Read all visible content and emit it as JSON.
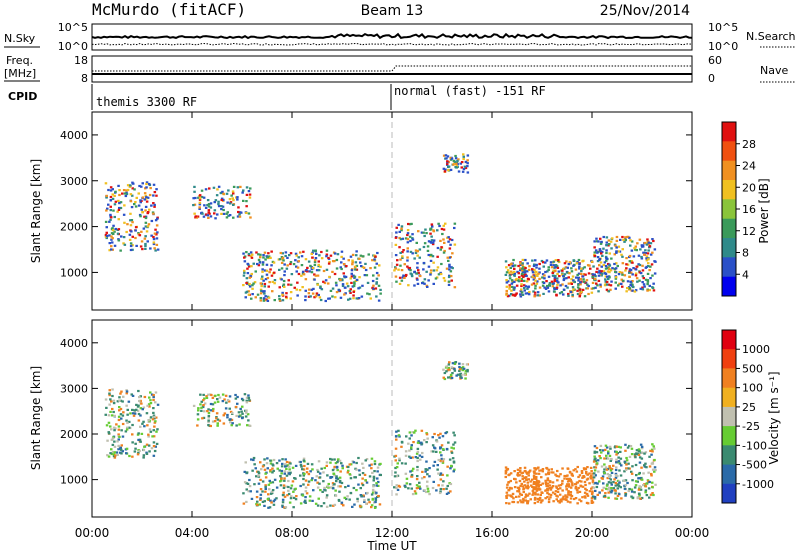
{
  "header": {
    "station": "McMurdo (fitACF)",
    "beam": "Beam 13",
    "date": "25/Nov/2014"
  },
  "top_panels": {
    "nsky_label": "N.Sky",
    "nsky_ticks": [
      "10^5",
      "10^0"
    ],
    "nsearch_ticks": [
      "10^5",
      "10^0"
    ],
    "nsearch_label": "N.Search",
    "freq_label_1": "Freq.",
    "freq_label_2": "[MHz]",
    "freq_ticks": [
      "18",
      "8"
    ],
    "nave_ticks": [
      "60",
      "0"
    ],
    "nave_label": "Nave",
    "cpid_label": "CPID",
    "cpid_1": "themis 3300 RF",
    "cpid_2": "normal (fast) -151 RF"
  },
  "chart_data": [
    {
      "type": "heatmap",
      "ylabel": "Slant Range [km]",
      "yticks": [
        "4000",
        "3000",
        "2000",
        "1000"
      ],
      "ylim": [
        180,
        4500
      ],
      "colorbar_label": "Power [dB]",
      "colorbar_ticks": [
        "28",
        "24",
        "20",
        "16",
        "12",
        "8",
        "4"
      ],
      "colorbar_colors": [
        "#0000ee",
        "#2a50c8",
        "#2f8a8a",
        "#3a9a5a",
        "#8ac43a",
        "#f0c020",
        "#f09020",
        "#f05010",
        "#e01010"
      ]
    },
    {
      "type": "heatmap",
      "ylabel": "Slant Range [km]",
      "yticks": [
        "4000",
        "3000",
        "2000",
        "1000"
      ],
      "ylim": [
        180,
        4500
      ],
      "colorbar_label": "Velocity [m s⁻¹]",
      "colorbar_ticks": [
        "1000",
        "500",
        "100",
        "25",
        "-25",
        "-100",
        "-500",
        "-1000"
      ],
      "colorbar_colors": [
        "#2040c0",
        "#2a6aa8",
        "#3a8a70",
        "#66cc33",
        "#c0c0b0",
        "#f0b020",
        "#f08020",
        "#f04010",
        "#e00010"
      ]
    }
  ],
  "x_axis": {
    "ticks": [
      "00:00",
      "04:00",
      "08:00",
      "12:00",
      "16:00",
      "20:00",
      "00:00"
    ],
    "label": "Time UT"
  }
}
